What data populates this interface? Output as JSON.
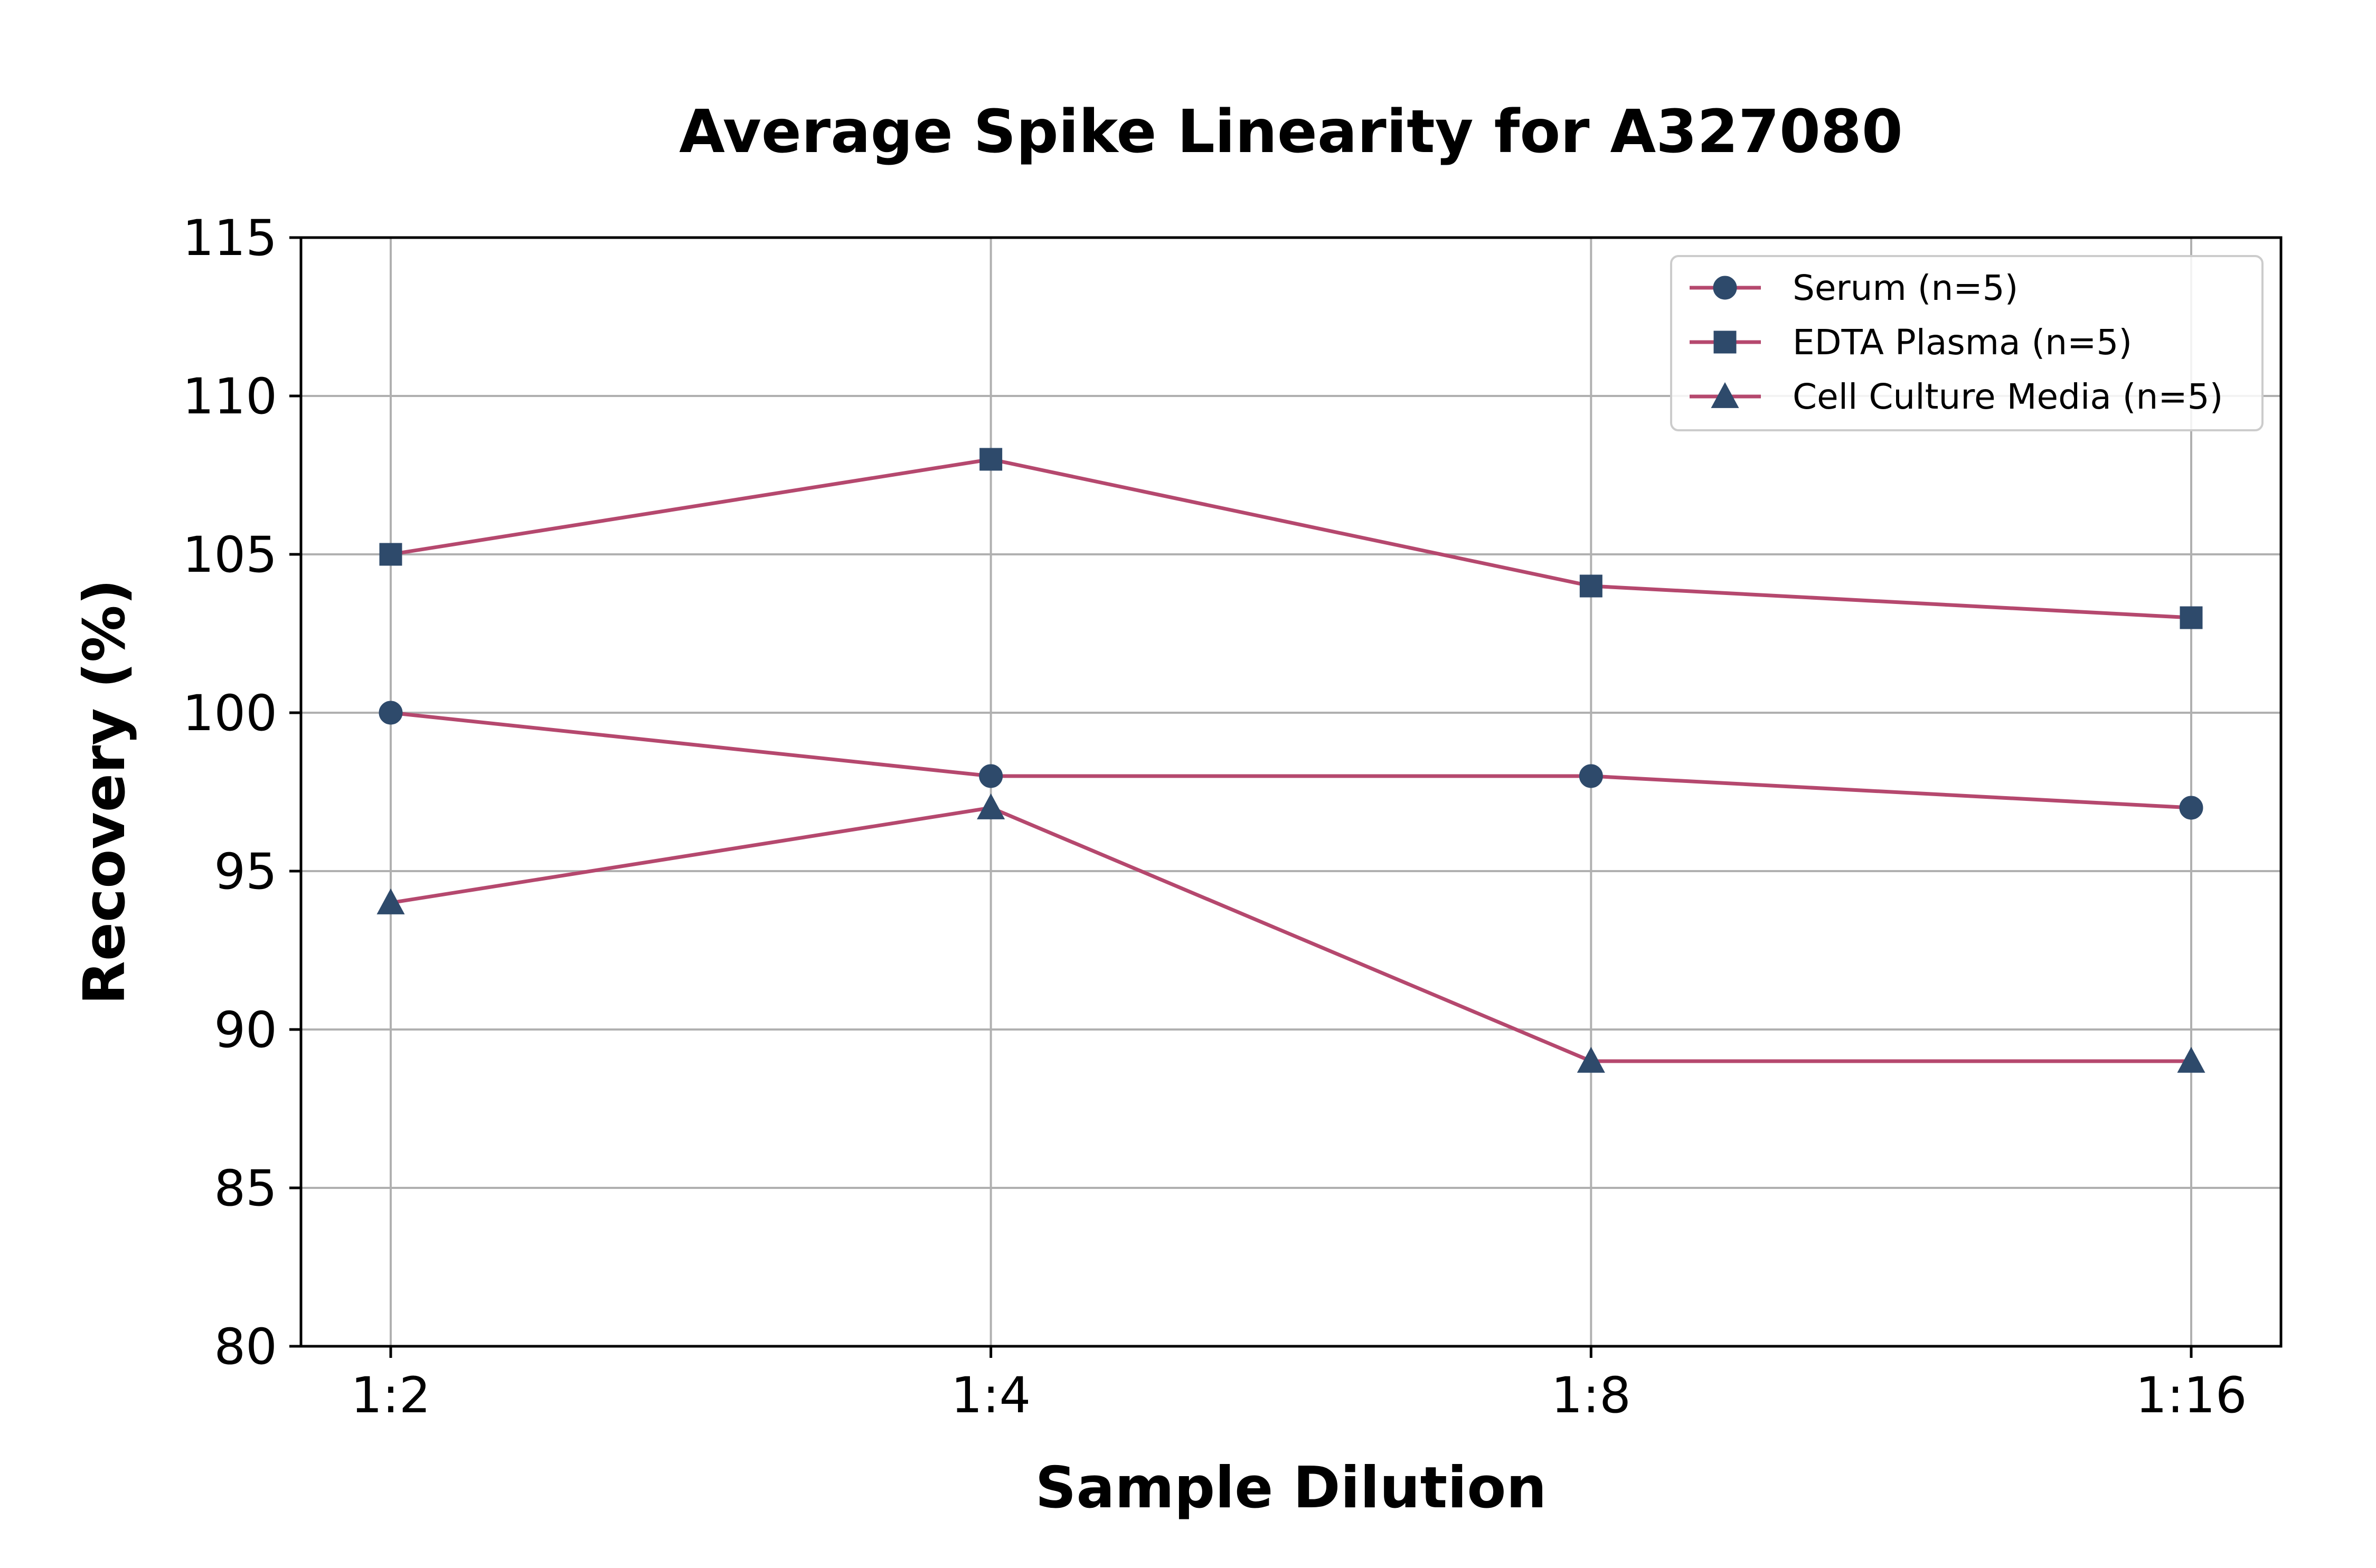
{
  "chart_data": {
    "type": "line",
    "title": "Average Spike Linearity for A327080",
    "xlabel": "Sample Dilution",
    "ylabel": "Recovery (%)",
    "categories": [
      "1:2",
      "1:4",
      "1:8",
      "1:16"
    ],
    "ylim": [
      80,
      115
    ],
    "yticks": [
      80,
      85,
      90,
      95,
      100,
      105,
      110,
      115
    ],
    "grid": true,
    "legend_position": "top-right",
    "line_color": "#b5486e",
    "marker_color": "#2e4a6b",
    "series": [
      {
        "name": "Serum (n=5)",
        "marker": "circle",
        "values": [
          100,
          98,
          98,
          97
        ]
      },
      {
        "name": "EDTA Plasma (n=5)",
        "marker": "square",
        "values": [
          105,
          108,
          104,
          103
        ]
      },
      {
        "name": "Cell Culture Media (n=5)",
        "marker": "triangle",
        "values": [
          94,
          97,
          89,
          89
        ]
      }
    ]
  }
}
